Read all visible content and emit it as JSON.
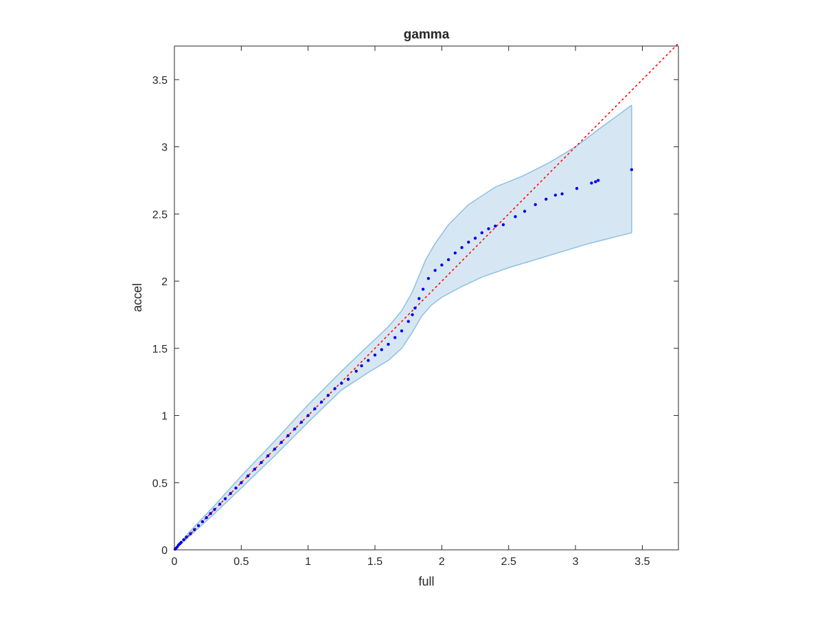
{
  "chart_data": {
    "type": "scatter",
    "title": "gamma",
    "xlabel": "full",
    "ylabel": "accel",
    "xlim": [
      0,
      3.77
    ],
    "ylim": [
      0,
      3.75
    ],
    "xticks": [
      "0",
      "0.5",
      "1",
      "1.5",
      "2",
      "2.5",
      "3",
      "3.5"
    ],
    "yticks": [
      "0",
      "0.5",
      "1",
      "1.5",
      "2",
      "2.5",
      "3",
      "3.5"
    ],
    "xtick_values": [
      0,
      0.5,
      1,
      1.5,
      2,
      2.5,
      3,
      3.5
    ],
    "ytick_values": [
      0,
      0.5,
      1,
      1.5,
      2,
      2.5,
      3,
      3.5
    ],
    "grid": false,
    "reference_line": {
      "style": "dotted",
      "color": "#ff0000",
      "from": [
        0,
        0
      ],
      "to": [
        3.77,
        3.77
      ]
    },
    "band": {
      "color": "#d6e7f3",
      "edge_color": "#8dbfe0",
      "upper": [
        [
          0,
          0
        ],
        [
          0.1,
          0.12
        ],
        [
          0.3,
          0.33
        ],
        [
          0.5,
          0.55
        ],
        [
          0.75,
          0.81
        ],
        [
          1.0,
          1.08
        ],
        [
          1.25,
          1.33
        ],
        [
          1.45,
          1.52
        ],
        [
          1.6,
          1.66
        ],
        [
          1.7,
          1.78
        ],
        [
          1.78,
          1.92
        ],
        [
          1.83,
          2.04
        ],
        [
          1.88,
          2.16
        ],
        [
          1.95,
          2.28
        ],
        [
          2.05,
          2.42
        ],
        [
          2.2,
          2.57
        ],
        [
          2.4,
          2.7
        ],
        [
          2.6,
          2.78
        ],
        [
          2.8,
          2.88
        ],
        [
          3.0,
          3.0
        ],
        [
          3.2,
          3.15
        ],
        [
          3.42,
          3.31
        ]
      ],
      "lower": [
        [
          0,
          0
        ],
        [
          0.1,
          0.09
        ],
        [
          0.3,
          0.27
        ],
        [
          0.5,
          0.46
        ],
        [
          0.75,
          0.7
        ],
        [
          1.0,
          0.95
        ],
        [
          1.25,
          1.19
        ],
        [
          1.45,
          1.32
        ],
        [
          1.6,
          1.41
        ],
        [
          1.7,
          1.5
        ],
        [
          1.78,
          1.62
        ],
        [
          1.85,
          1.74
        ],
        [
          1.92,
          1.82
        ],
        [
          2.0,
          1.88
        ],
        [
          2.15,
          1.96
        ],
        [
          2.3,
          2.03
        ],
        [
          2.5,
          2.1
        ],
        [
          2.7,
          2.16
        ],
        [
          2.9,
          2.22
        ],
        [
          3.1,
          2.28
        ],
        [
          3.3,
          2.33
        ],
        [
          3.42,
          2.36
        ]
      ]
    },
    "series": [
      {
        "color": "#0000ee",
        "points": [
          [
            0.005,
            0.005
          ],
          [
            0.01,
            0.01
          ],
          [
            0.02,
            0.02
          ],
          [
            0.03,
            0.035
          ],
          [
            0.04,
            0.045
          ],
          [
            0.05,
            0.055
          ],
          [
            0.07,
            0.075
          ],
          [
            0.09,
            0.095
          ],
          [
            0.12,
            0.12
          ],
          [
            0.15,
            0.15
          ],
          [
            0.18,
            0.18
          ],
          [
            0.21,
            0.21
          ],
          [
            0.24,
            0.24
          ],
          [
            0.27,
            0.27
          ],
          [
            0.3,
            0.3
          ],
          [
            0.34,
            0.34
          ],
          [
            0.38,
            0.38
          ],
          [
            0.42,
            0.42
          ],
          [
            0.46,
            0.46
          ],
          [
            0.5,
            0.5
          ],
          [
            0.55,
            0.55
          ],
          [
            0.6,
            0.6
          ],
          [
            0.65,
            0.65
          ],
          [
            0.7,
            0.7
          ],
          [
            0.75,
            0.75
          ],
          [
            0.8,
            0.8
          ],
          [
            0.85,
            0.85
          ],
          [
            0.9,
            0.9
          ],
          [
            0.95,
            0.95
          ],
          [
            1.0,
            1.0
          ],
          [
            1.05,
            1.05
          ],
          [
            1.1,
            1.1
          ],
          [
            1.15,
            1.15
          ],
          [
            1.2,
            1.2
          ],
          [
            1.25,
            1.24
          ],
          [
            1.3,
            1.27
          ],
          [
            1.36,
            1.33
          ],
          [
            1.4,
            1.37
          ],
          [
            1.45,
            1.41
          ],
          [
            1.5,
            1.45
          ],
          [
            1.55,
            1.49
          ],
          [
            1.6,
            1.53
          ],
          [
            1.65,
            1.58
          ],
          [
            1.7,
            1.63
          ],
          [
            1.75,
            1.7
          ],
          [
            1.78,
            1.75
          ],
          [
            1.8,
            1.8
          ],
          [
            1.83,
            1.87
          ],
          [
            1.86,
            1.94
          ],
          [
            1.9,
            2.02
          ],
          [
            1.95,
            2.08
          ],
          [
            2.0,
            2.12
          ],
          [
            2.05,
            2.16
          ],
          [
            2.1,
            2.21
          ],
          [
            2.15,
            2.25
          ],
          [
            2.2,
            2.29
          ],
          [
            2.25,
            2.32
          ],
          [
            2.3,
            2.36
          ],
          [
            2.35,
            2.39
          ],
          [
            2.4,
            2.41
          ],
          [
            2.46,
            2.42
          ],
          [
            2.55,
            2.48
          ],
          [
            2.62,
            2.52
          ],
          [
            2.7,
            2.57
          ],
          [
            2.78,
            2.61
          ],
          [
            2.85,
            2.64
          ],
          [
            2.9,
            2.65
          ],
          [
            3.01,
            2.69
          ],
          [
            3.12,
            2.73
          ],
          [
            3.15,
            2.74
          ],
          [
            3.17,
            2.75
          ],
          [
            3.42,
            2.83
          ]
        ]
      }
    ]
  }
}
